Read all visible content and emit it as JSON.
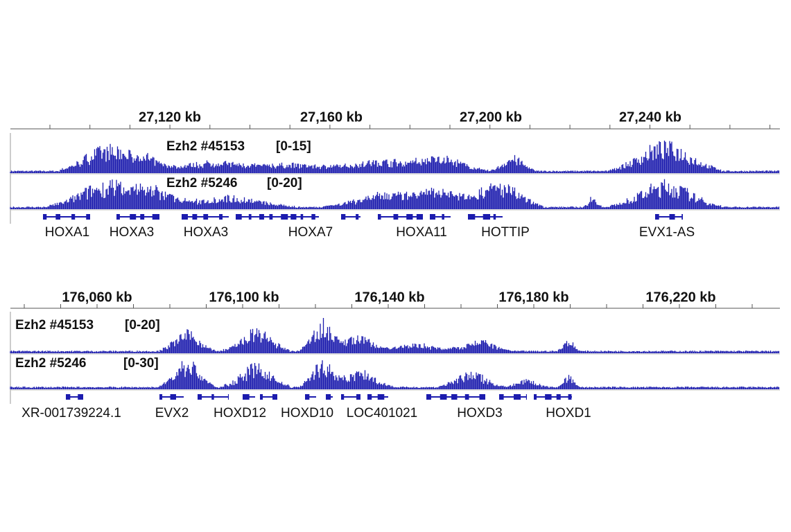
{
  "panels": [
    {
      "ruler": [
        "27,120 kb",
        "27,160 kb",
        "27,200 kb",
        "27,240 kb"
      ],
      "tracks": [
        {
          "name": "Ezh2 #45153",
          "range": "[0-15]"
        },
        {
          "name": "Ezh2 #5246",
          "range": "[0-20]"
        }
      ],
      "genes": [
        "HOXA1",
        "HOXA3",
        "HOXA3",
        "HOXA7",
        "HOXA11",
        "HOTTIP",
        "EVX1-AS"
      ]
    },
    {
      "ruler": [
        "176,060 kb",
        "176,100 kb",
        "176,140 kb",
        "176,180 kb",
        "176,220 kb"
      ],
      "tracks": [
        {
          "name": "Ezh2 #45153",
          "range": "[0-20]"
        },
        {
          "name": "Ezh2 #5246",
          "range": "[0-30]"
        }
      ],
      "genes": [
        "XR-001739224.1",
        "EVX2",
        "HOXD12",
        "HOXD10",
        "LOC401021",
        "HOXD3",
        "HOXD1"
      ]
    }
  ]
}
